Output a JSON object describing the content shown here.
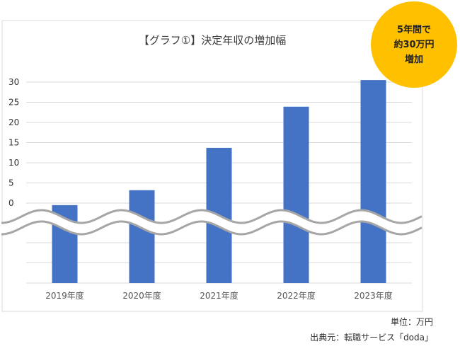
{
  "chart_data": {
    "type": "bar",
    "title": "【グラフ①】決定年収の増加幅",
    "categories": [
      "2019年度",
      "2020年度",
      "2021年度",
      "2022年度",
      "2023年度"
    ],
    "values": [
      -0.5,
      3.2,
      13.7,
      23.9,
      30.5
    ],
    "ylim": [
      0,
      30
    ],
    "yticks": [
      "30",
      "25",
      "20",
      "15",
      "10",
      "5",
      "0"
    ],
    "ytick_values": [
      30,
      25,
      20,
      15,
      10,
      5,
      0
    ],
    "axis_break": true,
    "grid": true,
    "bar_color": "#4472c4",
    "unit_note": "単位：万円",
    "source_note": "出典元：転職サービス「doda」"
  },
  "badge": {
    "line1": "5年間で",
    "line2": "約30万円",
    "line3": "増加",
    "color": "#ffc000"
  }
}
